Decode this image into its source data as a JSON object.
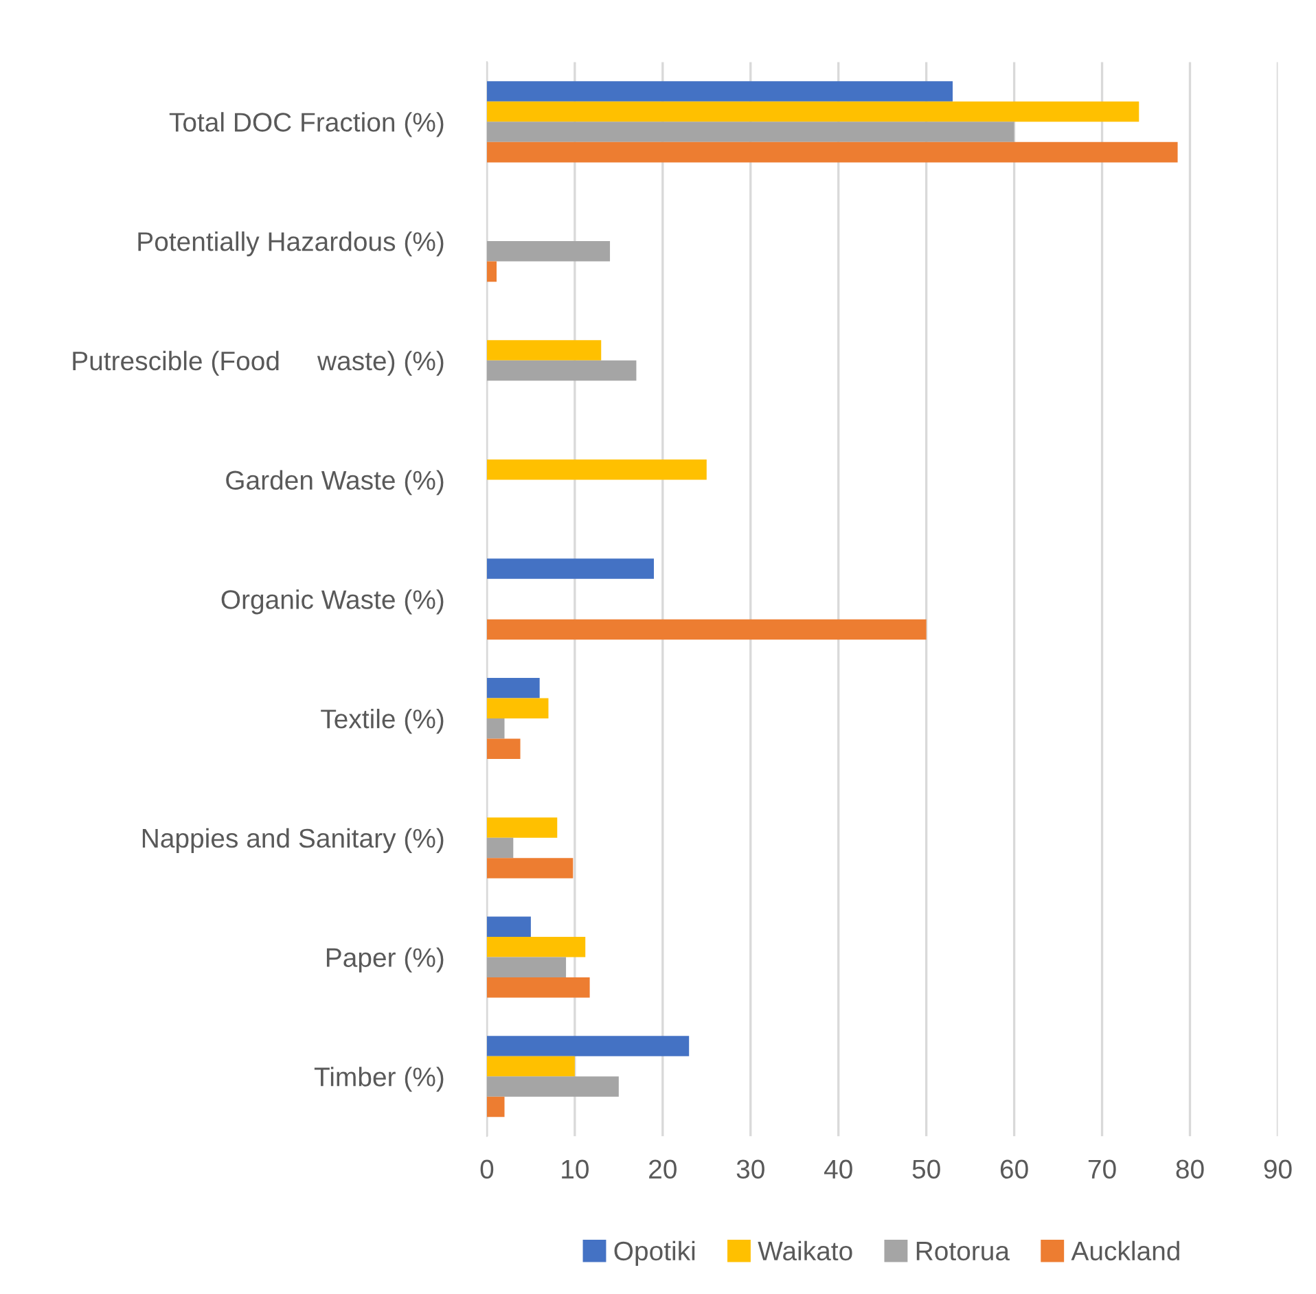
{
  "chart_data": {
    "type": "bar",
    "orientation": "horizontal",
    "categories": [
      "Total DOC Fraction (%)",
      "Potentially Hazardous (%)",
      "Putrescible (Food     waste) (%)",
      "Garden Waste (%)",
      "Organic Waste (%)",
      "Textile (%)",
      "Nappies and Sanitary (%)",
      "Paper (%)",
      "Timber (%)"
    ],
    "series": [
      {
        "name": "Opotiki",
        "color": "#4472c4",
        "values": [
          53,
          null,
          null,
          null,
          19,
          6,
          null,
          5,
          23
        ]
      },
      {
        "name": "Waikato",
        "color": "#ffc000",
        "values": [
          74.2,
          null,
          13,
          25,
          null,
          7,
          8,
          11.2,
          10
        ]
      },
      {
        "name": "Rotorua",
        "color": "#a5a5a5",
        "values": [
          60,
          14,
          17,
          null,
          null,
          2,
          3,
          9,
          15
        ]
      },
      {
        "name": "Auckland",
        "color": "#ed7d31",
        "values": [
          78.6,
          1.1,
          null,
          null,
          50,
          3.8,
          9.8,
          11.7,
          2
        ]
      }
    ],
    "xlim": [
      0,
      90
    ],
    "xticks": [
      0,
      10,
      20,
      30,
      40,
      50,
      60,
      70,
      80,
      90
    ],
    "grid": "x",
    "legend": "bottom"
  }
}
